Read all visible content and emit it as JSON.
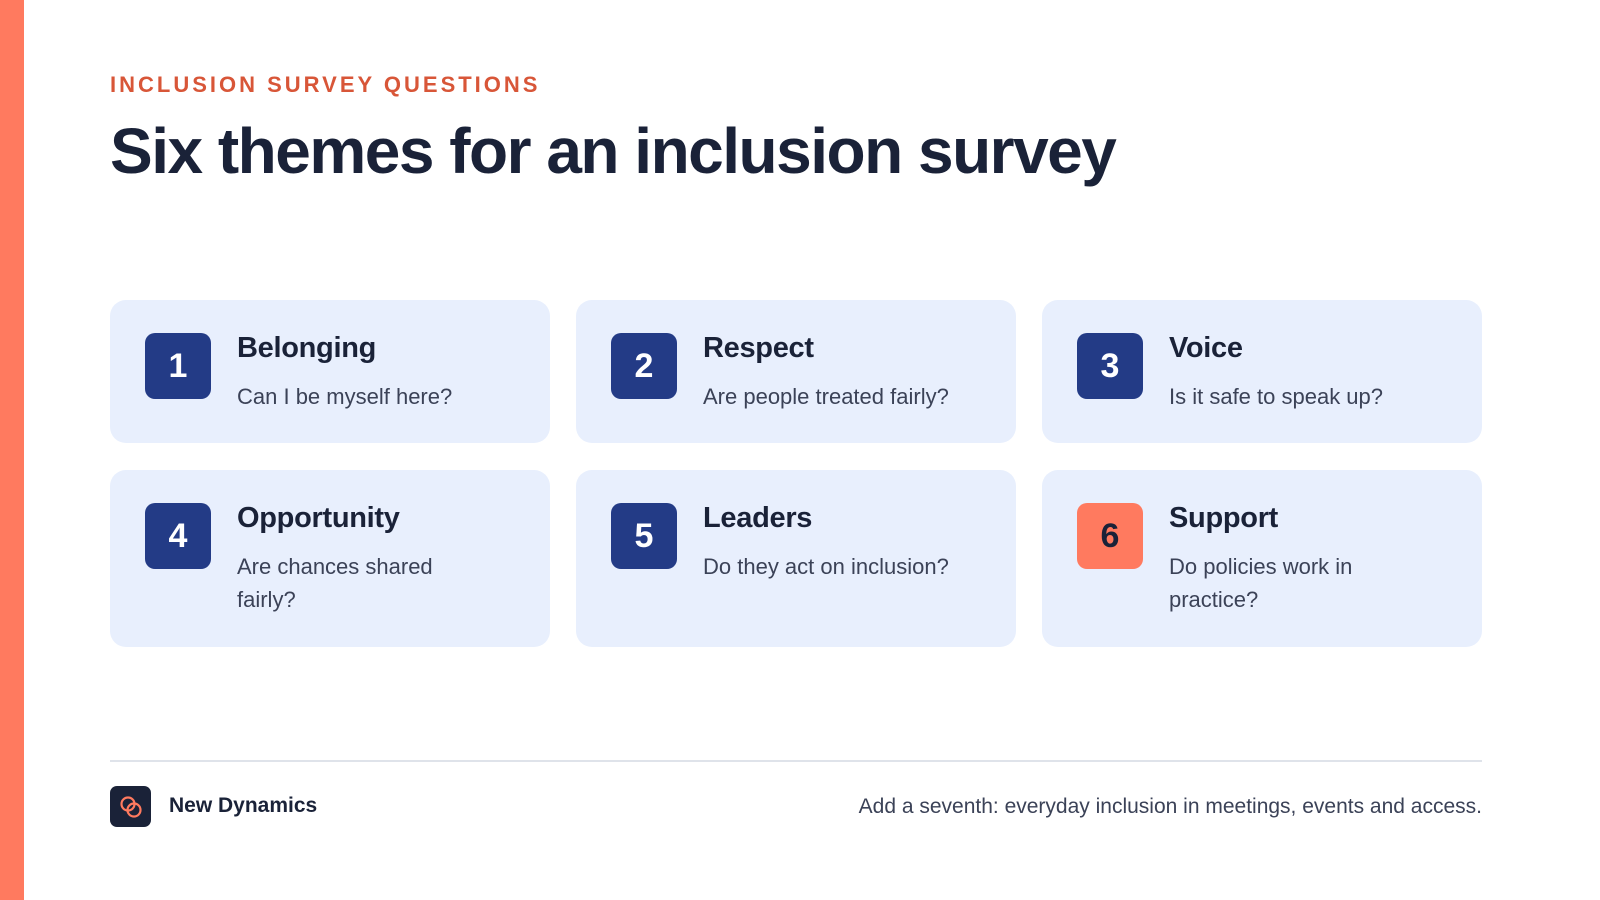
{
  "slide": {
    "eyebrow": "INCLUSION SURVEY QUESTIONS",
    "title": "Six themes for an inclusion survey"
  },
  "themes": [
    {
      "number": "1",
      "title": "Belonging",
      "question": "Can I be myself here?"
    },
    {
      "number": "2",
      "title": "Respect",
      "question": "Are people treated fairly?"
    },
    {
      "number": "3",
      "title": "Voice",
      "question": "Is it safe to speak up?"
    },
    {
      "number": "4",
      "title": "Opportunity",
      "question": "Are chances shared fairly?"
    },
    {
      "number": "5",
      "title": "Leaders",
      "question": "Do they act on inclusion?"
    },
    {
      "number": "6",
      "title": "Support",
      "question": "Do policies work in practice?"
    }
  ],
  "footer": {
    "brand": "New Dynamics",
    "logo_icon": "interlocking-rings-icon",
    "note": "Add a seventh: everyday inclusion in meetings, events and access."
  },
  "colors": {
    "accent": "#ff7a5f",
    "eyebrow": "#d85638",
    "navy": "#1a2238",
    "badge": "#233b86",
    "card_bg": "#e8effd"
  }
}
